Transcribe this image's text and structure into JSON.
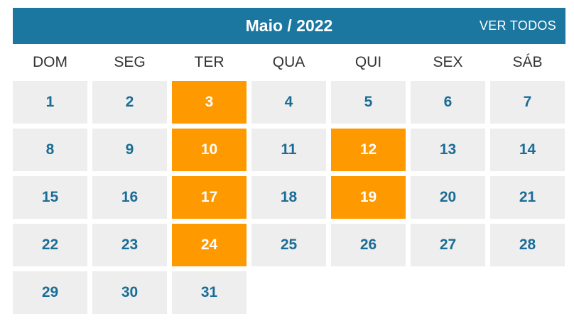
{
  "calendar": {
    "title": "Maio / 2022",
    "view_all_label": "VER TODOS",
    "weekdays": [
      "DOM",
      "SEG",
      "TER",
      "QUA",
      "QUI",
      "SEX",
      "SÁB"
    ],
    "colors": {
      "header": "#1b77a0",
      "day_bg": "#eeeeee",
      "day_text": "#1b6d96",
      "event_bg": "#ff9900"
    },
    "days": [
      {
        "label": "1",
        "event": false
      },
      {
        "label": "2",
        "event": false
      },
      {
        "label": "3",
        "event": true
      },
      {
        "label": "4",
        "event": false
      },
      {
        "label": "5",
        "event": false
      },
      {
        "label": "6",
        "event": false
      },
      {
        "label": "7",
        "event": false
      },
      {
        "label": "8",
        "event": false
      },
      {
        "label": "9",
        "event": false
      },
      {
        "label": "10",
        "event": true
      },
      {
        "label": "11",
        "event": false
      },
      {
        "label": "12",
        "event": true
      },
      {
        "label": "13",
        "event": false
      },
      {
        "label": "14",
        "event": false
      },
      {
        "label": "15",
        "event": false
      },
      {
        "label": "16",
        "event": false
      },
      {
        "label": "17",
        "event": true
      },
      {
        "label": "18",
        "event": false
      },
      {
        "label": "19",
        "event": true
      },
      {
        "label": "20",
        "event": false
      },
      {
        "label": "21",
        "event": false
      },
      {
        "label": "22",
        "event": false
      },
      {
        "label": "23",
        "event": false
      },
      {
        "label": "24",
        "event": true
      },
      {
        "label": "25",
        "event": false
      },
      {
        "label": "26",
        "event": false
      },
      {
        "label": "27",
        "event": false
      },
      {
        "label": "28",
        "event": false
      },
      {
        "label": "29",
        "event": false
      },
      {
        "label": "30",
        "event": false
      },
      {
        "label": "31",
        "event": false
      }
    ]
  }
}
